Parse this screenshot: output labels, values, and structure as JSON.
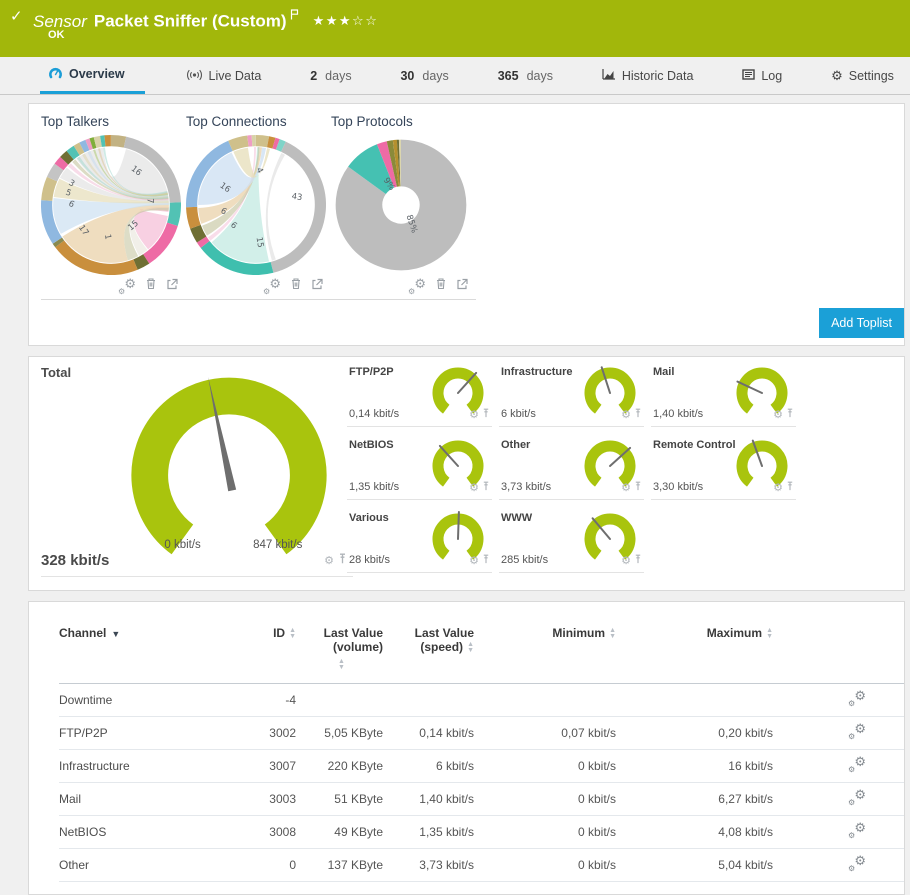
{
  "colors": {
    "status_ok_green": "#a2b70b",
    "gauge_green": "#a9c40d",
    "accent_blue": "#1ba0d7"
  },
  "header": {
    "check": "✓",
    "kind": "Sensor",
    "title": "Packet Sniffer (Custom)",
    "status": "OK",
    "stars": {
      "filled": 3,
      "total": 5,
      "filled_glyphs": "★★★",
      "empty_glyphs": "☆☆"
    }
  },
  "tabs": {
    "items": [
      {
        "label": "Overview",
        "active": true
      },
      {
        "label": "Live Data"
      },
      {
        "num": "2",
        "label": "days"
      },
      {
        "num": "30",
        "label": "days"
      },
      {
        "num": "365",
        "label": "days"
      },
      {
        "label": "Historic Data"
      },
      {
        "label": "Log"
      },
      {
        "label": "Settings"
      }
    ]
  },
  "toplists": {
    "cards": [
      {
        "title": "Top Talkers"
      },
      {
        "title": "Top Connections"
      },
      {
        "title": "Top Protocols"
      }
    ],
    "add_button_label": "Add Toplist"
  },
  "gauges": {
    "total": {
      "label": "Total",
      "value": "328 kbit/s",
      "scale_min": "0 kbit/s",
      "scale_max": "847 kbit/s"
    },
    "channels": [
      {
        "label": "FTP/P2P",
        "value": "0,14 kbit/s"
      },
      {
        "label": "Infrastructure",
        "value": "6 kbit/s"
      },
      {
        "label": "Mail",
        "value": "1,40 kbit/s"
      },
      {
        "label": "NetBIOS",
        "value": "1,35 kbit/s"
      },
      {
        "label": "Other",
        "value": "3,73 kbit/s"
      },
      {
        "label": "Remote Control",
        "value": "3,30 kbit/s"
      },
      {
        "label": "Various",
        "value": "28 kbit/s"
      },
      {
        "label": "WWW",
        "value": "285 kbit/s"
      }
    ]
  },
  "table": {
    "headers": {
      "channel": "Channel",
      "id": "ID",
      "volume": "Last Value (volume)",
      "speed": "Last Value (speed)",
      "minimum": "Minimum",
      "maximum": "Maximum"
    },
    "rows": [
      {
        "channel": "Downtime",
        "id": "-4",
        "volume": "",
        "speed": "",
        "minimum": "",
        "maximum": ""
      },
      {
        "channel": "FTP/P2P",
        "id": "3002",
        "volume": "5,05 KByte",
        "speed": "0,14 kbit/s",
        "minimum": "0,07 kbit/s",
        "maximum": "0,20 kbit/s"
      },
      {
        "channel": "Infrastructure",
        "id": "3007",
        "volume": "220 KByte",
        "speed": "6 kbit/s",
        "minimum": "0 kbit/s",
        "maximum": "16 kbit/s"
      },
      {
        "channel": "Mail",
        "id": "3003",
        "volume": "51 KByte",
        "speed": "1,40 kbit/s",
        "minimum": "0 kbit/s",
        "maximum": "6,27 kbit/s"
      },
      {
        "channel": "NetBIOS",
        "id": "3008",
        "volume": "49 KByte",
        "speed": "1,35 kbit/s",
        "minimum": "0 kbit/s",
        "maximum": "4,08 kbit/s"
      },
      {
        "channel": "Other",
        "id": "0",
        "volume": "137 KByte",
        "speed": "3,73 kbit/s",
        "minimum": "0 kbit/s",
        "maximum": "5,04 kbit/s"
      }
    ]
  },
  "chart_data": [
    {
      "type": "pie",
      "variant": "chord",
      "title": "Top Talkers",
      "labeled_values": [
        16,
        7,
        15,
        1,
        17,
        6,
        5,
        3
      ],
      "ring_radius": 69,
      "ring_thickness": 12,
      "segments": [
        {
          "value": 3.5,
          "color": "#c2b283"
        },
        {
          "value": 21,
          "color": "#bdbdbd"
        },
        {
          "value": 5.5,
          "color": "#52c2b4"
        },
        {
          "value": 11,
          "color": "#ee6ba5"
        },
        {
          "value": 3,
          "color": "#6f6f34"
        },
        {
          "value": 21,
          "color": "#c98f3d"
        },
        {
          "value": 1,
          "color": "#8a8a50"
        },
        {
          "value": 10.5,
          "color": "#8fb8e0"
        },
        {
          "value": 5.5,
          "color": "#cfc08b"
        },
        {
          "value": 3.5,
          "color": "#c4c4c4"
        },
        {
          "value": 2,
          "color": "#ee6ba5"
        },
        {
          "value": 2,
          "color": "#6f6f34"
        },
        {
          "value": 2,
          "color": "#52c2b4"
        },
        {
          "value": 1.5,
          "color": "#cfc08b"
        },
        {
          "value": 1.5,
          "color": "#8fb8e0"
        },
        {
          "value": 1,
          "color": "#ee9ec4"
        },
        {
          "value": 1,
          "color": "#7fae3a"
        },
        {
          "value": 1.5,
          "color": "#d8d2a8"
        },
        {
          "value": 1,
          "color": "#52c2b4"
        },
        {
          "value": 1.5,
          "color": "#c98f3d"
        }
      ],
      "ribbons": [
        {
          "from": [
            15,
            85
          ],
          "to": [
            323,
            352
          ],
          "color": "#e4e4e4",
          "opacity": 0.75
        },
        {
          "from": [
            101,
            140
          ],
          "to": [
            92,
            97
          ],
          "color": "#f5bcd6",
          "opacity": 0.7
        },
        {
          "from": [
            141,
            151
          ],
          "to": [
            92,
            95
          ],
          "color": "#e8e4da",
          "opacity": 0.6
        },
        {
          "from": [
            152,
            163
          ],
          "to": [
            93,
            96
          ],
          "color": "#bcbc90",
          "opacity": 0.5
        },
        {
          "from": [
            163,
            237
          ],
          "to": [
            88,
            93
          ],
          "color": "#e9d2a9",
          "opacity": 0.75
        },
        {
          "from": [
            240,
            277
          ],
          "to": [
            86,
            90
          ],
          "color": "#cfe1f2",
          "opacity": 0.75
        },
        {
          "from": [
            278,
            297
          ],
          "to": [
            85,
            88
          ],
          "color": "#e6ddb8",
          "opacity": 0.7
        },
        {
          "from": [
            298,
            310
          ],
          "to": [
            84,
            86
          ],
          "color": "#dedede",
          "opacity": 0.6
        },
        {
          "from": [
            312,
            316
          ],
          "to": [
            83,
            85
          ],
          "color": "#f2b9d3",
          "opacity": 0.5
        },
        {
          "from": [
            318,
            322
          ],
          "to": [
            82,
            84
          ],
          "color": "#b9b98c",
          "opacity": 0.5
        },
        {
          "from": [
            324,
            327
          ],
          "to": [
            81,
            83
          ],
          "color": "#9fd8cd",
          "opacity": 0.5
        },
        {
          "from": [
            330,
            333
          ],
          "to": [
            80,
            82
          ],
          "color": "#ddd4ab",
          "opacity": 0.5
        },
        {
          "from": [
            336,
            339
          ],
          "to": [
            79,
            81
          ],
          "color": "#c4daf0",
          "opacity": 0.5
        },
        {
          "from": [
            342,
            344
          ],
          "to": [
            78,
            80
          ],
          "color": "#a9c86c",
          "opacity": 0.5
        },
        {
          "from": [
            347,
            349
          ],
          "to": [
            77,
            79
          ],
          "color": "#dbc291",
          "opacity": 0.5
        },
        {
          "from": [
            352,
            354
          ],
          "to": [
            76,
            78
          ],
          "color": "#9fd8cd",
          "opacity": 0.5
        }
      ],
      "labels": [
        {
          "text": "16",
          "x": 67,
          "y": 27,
          "rot": 38
        },
        {
          "text": "7",
          "x": 76,
          "y": 47,
          "rot": 90
        },
        {
          "text": "15",
          "x": 67,
          "y": 66,
          "rot": -40
        },
        {
          "text": "1",
          "x": 46,
          "y": 73,
          "rot": 80
        },
        {
          "text": "17",
          "x": 29,
          "y": 69,
          "rot": 55
        },
        {
          "text": "6",
          "x": 21,
          "y": 51,
          "rot": 25
        },
        {
          "text": "5",
          "x": 19,
          "y": 43,
          "rot": 20
        },
        {
          "text": "3",
          "x": 21,
          "y": 36,
          "rot": 30
        }
      ]
    },
    {
      "type": "pie",
      "variant": "chord",
      "title": "Top Connections",
      "labeled_values": [
        4,
        43,
        15,
        6,
        6,
        16
      ],
      "ring_radius": 69,
      "ring_thickness": 12,
      "segments": [
        {
          "value": 3,
          "color": "#cfc08b"
        },
        {
          "value": 1.5,
          "color": "#c98f3d"
        },
        {
          "value": 1,
          "color": "#ee6ba5"
        },
        {
          "value": 1.5,
          "color": "#7fd4c8"
        },
        {
          "value": 39,
          "color": "#bdbdbd"
        },
        {
          "value": 18.5,
          "color": "#3fbfae"
        },
        {
          "value": 1.5,
          "color": "#ee6ba5"
        },
        {
          "value": 3.5,
          "color": "#6f6f34"
        },
        {
          "value": 5,
          "color": "#c98f3d"
        },
        {
          "value": 19,
          "color": "#8fb8e0"
        },
        {
          "value": 4.5,
          "color": "#cfc08b"
        },
        {
          "value": 1,
          "color": "#ee9ec4"
        },
        {
          "value": 1,
          "color": "#d8d2a8"
        }
      ],
      "ribbons": [
        {
          "from": [
            26,
            30
          ],
          "to": [
            160,
            164
          ],
          "color": "#dcdcdc",
          "opacity": 0.6
        },
        {
          "from": [
            167,
            230
          ],
          "to": [
            1,
            3
          ],
          "color": "#c3e9e2",
          "opacity": 0.75
        },
        {
          "from": [
            232,
            236
          ],
          "to": [
            358,
            360
          ],
          "color": "#f4bcd6",
          "opacity": 0.5
        },
        {
          "from": [
            238,
            249
          ],
          "to": [
            2,
            4
          ],
          "color": "#bcbc90",
          "opacity": 0.55
        },
        {
          "from": [
            251,
            267
          ],
          "to": [
            4,
            6
          ],
          "color": "#e9d2a9",
          "opacity": 0.75
        },
        {
          "from": [
            270,
            335
          ],
          "to": [
            6,
            10
          ],
          "color": "#cfe1f2",
          "opacity": 0.8
        },
        {
          "from": [
            337,
            352
          ],
          "to": [
            11,
            14
          ],
          "color": "#e6ddb8",
          "opacity": 0.75
        }
      ],
      "labels": [
        {
          "text": "16",
          "x": 27,
          "y": 39,
          "rot": 35
        },
        {
          "text": "4",
          "x": 51,
          "y": 26,
          "rot": 65
        },
        {
          "text": "43",
          "x": 79,
          "y": 46,
          "rot": 8
        },
        {
          "text": "6",
          "x": 26,
          "y": 56,
          "rot": 30
        },
        {
          "text": "6",
          "x": 33,
          "y": 66,
          "rot": 40
        },
        {
          "text": "15",
          "x": 51,
          "y": 77,
          "rot": 80
        }
      ]
    },
    {
      "type": "pie",
      "title": "Top Protocols",
      "labeled_values": [
        "85%",
        "9%"
      ],
      "ring_radius": 45,
      "ring_thickness": 50,
      "segments": [
        {
          "value": 85,
          "color": "#bdbdbd"
        },
        {
          "value": 9,
          "color": "#45c1b2"
        },
        {
          "value": 2.5,
          "color": "#ee6ba5"
        },
        {
          "value": 1.5,
          "color": "#8a8a3a"
        },
        {
          "value": 1,
          "color": "#b5902e"
        },
        {
          "value": 0.5,
          "color": "#6f6f34"
        },
        {
          "value": 0.5,
          "color": "#d8d2a8"
        }
      ],
      "labels": [
        {
          "text": "9%",
          "x": 40,
          "y": 36,
          "rot": 55
        },
        {
          "text": "85%",
          "x": 56,
          "y": 64,
          "rot": 72
        }
      ]
    },
    {
      "type": "gauge",
      "title": "Total",
      "value": "328 kbit/s",
      "min": "0 kbit/s",
      "max": "847 kbit/s",
      "needle_angle_deg": -12
    },
    {
      "type": "gauge",
      "title": "FTP/P2P",
      "value": "0,14 kbit/s",
      "needle_angle_deg": 42
    },
    {
      "type": "gauge",
      "title": "Infrastructure",
      "value": "6 kbit/s",
      "needle_angle_deg": -18
    },
    {
      "type": "gauge",
      "title": "Mail",
      "value": "1,40 kbit/s",
      "needle_angle_deg": -65
    },
    {
      "type": "gauge",
      "title": "NetBIOS",
      "value": "1,35 kbit/s",
      "needle_angle_deg": -42
    },
    {
      "type": "gauge",
      "title": "Other",
      "value": "3,73 kbit/s",
      "needle_angle_deg": 48
    },
    {
      "type": "gauge",
      "title": "Remote Control",
      "value": "3,30 kbit/s",
      "needle_angle_deg": -20
    },
    {
      "type": "gauge",
      "title": "Various",
      "value": "28 kbit/s",
      "needle_angle_deg": 2
    },
    {
      "type": "gauge",
      "title": "WWW",
      "value": "285 kbit/s",
      "needle_angle_deg": -40
    }
  ]
}
